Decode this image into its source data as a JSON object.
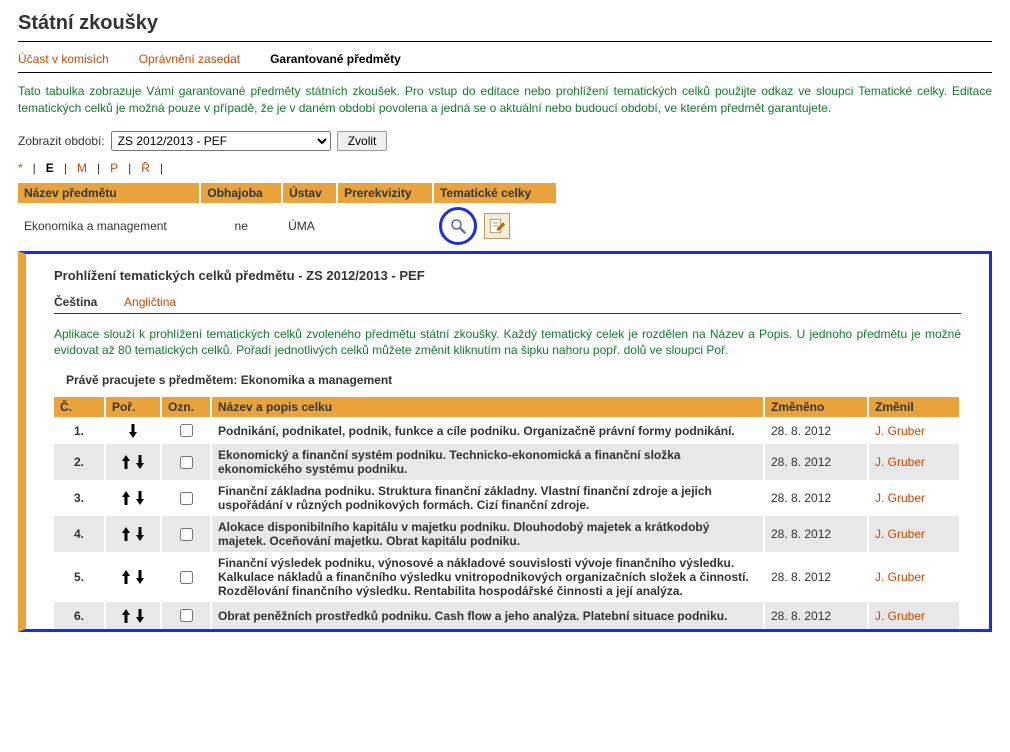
{
  "page_title": "Státní zkoušky",
  "nav": {
    "items": [
      {
        "label": "Účast v komisích",
        "active": false
      },
      {
        "label": "Oprávnění zasedat",
        "active": false
      },
      {
        "label": "Garantované předměty",
        "active": true
      }
    ]
  },
  "intro_text": "Tato tabulka zobrazuje Vámi garantované předměty státních zkoušek. Pro vstup do editace nebo prohlížení tematických celků použijte odkaz ve sloupci Tematické celky. Editace tematických celků je možná pouze v případě, že je v daném období povolena a jedná se o aktuální nebo budoucí období, ve kterém předmět garantujete.",
  "filter": {
    "label": "Zobrazit období:",
    "selected": "ZS 2012/2013 - PEF",
    "button": "Zvolit"
  },
  "alpha": {
    "star": "*",
    "letters": [
      "E",
      "M",
      "P",
      "Ř"
    ],
    "current": "E"
  },
  "table1": {
    "headers": [
      "Název předmětu",
      "Obhajoba",
      "Ústav",
      "Prerekvizity",
      "Tematické celky"
    ],
    "row": {
      "name": "Ekonomika a management",
      "defense": "ne",
      "dept": "ÚMA"
    }
  },
  "detail": {
    "title": "Prohlížení tematických celků předmětu - ZS 2012/2013 - PEF",
    "lang": {
      "active": "Čeština",
      "other": "Angličtina"
    },
    "desc": "Aplikace slouží k prohlížení tematických celků zvoleného předmětu státní zkoušky. Každý tematický celek je rozdělen na Název a Popis. U jednoho předmětu je možné evidovat až 80 tematických celků. Pořadí jednotlivých celků můžete změnit kliknutím na šipku nahoru popř. dolů ve sloupci Poř.",
    "working_label": "Právě pracujete s předmětem:",
    "working_subject": "Ekonomika a management",
    "headers": [
      "Č.",
      "Poř.",
      "Ozn.",
      "Název a popis celku",
      "Změněno",
      "Změnil"
    ],
    "rows": [
      {
        "num": "1.",
        "arrows": "down",
        "name": "Podnikání, podnikatel, podnik, funkce a cíle podniku. Organizačně právní formy podnikání.",
        "date": "28. 8. 2012",
        "user": "J. Gruber",
        "alt": false
      },
      {
        "num": "2.",
        "arrows": "both",
        "name": "Ekonomický a finanční systém podniku. Technicko-ekonomická a finanční složka ekonomického systému podniku.",
        "date": "28. 8. 2012",
        "user": "J. Gruber",
        "alt": true
      },
      {
        "num": "3.",
        "arrows": "both",
        "name": "Finanční základna podniku. Struktura finanční základny. Vlastní finanční zdroje a jejich uspořádání v různých podnikových formách. Cizí finanční zdroje.",
        "date": "28. 8. 2012",
        "user": "J. Gruber",
        "alt": false
      },
      {
        "num": "4.",
        "arrows": "both",
        "name": "Alokace disponibilního kapitálu v majetku podniku. Dlouhodobý majetek a krátkodobý majetek. Oceňování majetku. Obrat kapitálu podniku.",
        "date": "28. 8. 2012",
        "user": "J. Gruber",
        "alt": true
      },
      {
        "num": "5.",
        "arrows": "both",
        "name": "Finanční výsledek podniku, výnosové a nákladové souvislosti vývoje finančního výsledku. Kalkulace nákladů a finančního výsledku vnitropodnikových organizačních složek a činností. Rozdělování finančního výsledku. Rentabilita hospodářské činnosti a její analýza.",
        "date": "28. 8. 2012",
        "user": "J. Gruber",
        "alt": false
      },
      {
        "num": "6.",
        "arrows": "both",
        "name": "Obrat peněžních prostředků podniku. Cash flow a jeho analýza. Platební situace podniku.",
        "date": "28. 8. 2012",
        "user": "J. Gruber",
        "alt": true
      }
    ]
  }
}
